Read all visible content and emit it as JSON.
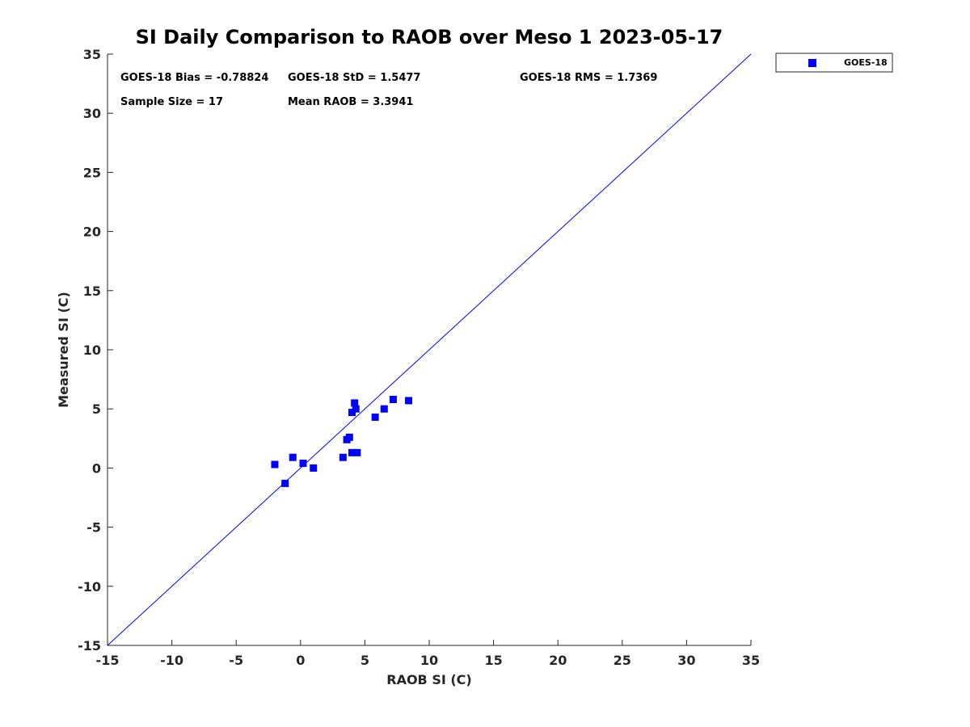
{
  "chart_data": {
    "type": "scatter",
    "title": "SI Daily Comparison to RAOB over Meso 1 2023-05-17",
    "xlabel": "RAOB SI (C)",
    "ylabel": "Measured SI (C)",
    "xlim": [
      -15,
      35
    ],
    "ylim": [
      -15,
      35
    ],
    "xticks": [
      -15,
      -10,
      -5,
      0,
      5,
      10,
      15,
      20,
      25,
      30,
      35
    ],
    "yticks": [
      -15,
      -10,
      -5,
      0,
      5,
      10,
      15,
      20,
      25,
      30,
      35
    ],
    "grid": false,
    "legend_position": "outside-top-right",
    "reference_line": {
      "from": [
        -15,
        -15
      ],
      "to": [
        35,
        35
      ],
      "color": "#0000ff"
    },
    "series": [
      {
        "name": "GOES-18",
        "color": "#0000ff",
        "marker": "square",
        "points": [
          [
            -2.0,
            0.3
          ],
          [
            -1.2,
            -1.3
          ],
          [
            -0.6,
            0.9
          ],
          [
            0.2,
            0.4
          ],
          [
            1.0,
            0.0
          ],
          [
            3.3,
            0.9
          ],
          [
            3.6,
            2.4
          ],
          [
            3.8,
            2.6
          ],
          [
            4.0,
            1.3
          ],
          [
            4.0,
            4.7
          ],
          [
            4.2,
            5.5
          ],
          [
            4.3,
            5.0
          ],
          [
            4.4,
            1.3
          ],
          [
            5.8,
            4.3
          ],
          [
            6.5,
            5.0
          ],
          [
            7.2,
            5.8
          ],
          [
            8.4,
            5.7
          ]
        ]
      }
    ],
    "annotations": {
      "bias": "GOES-18 Bias = -0.78824",
      "std": "GOES-18 StD = 1.5477",
      "rms": "GOES-18 RMS = 1.7369",
      "sample_size": "Sample Size = 17",
      "mean_raob": "Mean RAOB = 3.3941"
    }
  }
}
